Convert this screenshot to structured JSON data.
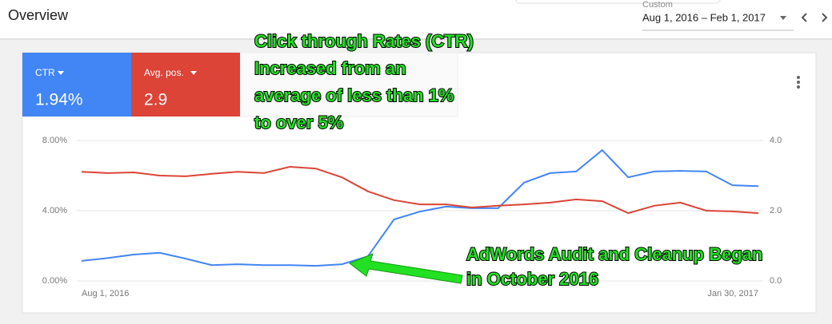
{
  "header": {
    "title": "Overview",
    "range_label": "Custom",
    "date_range": "Aug 1, 2016 – Feb 1, 2017"
  },
  "metrics": [
    {
      "value": "1.94%"
    },
    {
      "value": "2.9"
    }
  ],
  "chart_data": {
    "type": "line",
    "categories": [
      "Aug 1, 2016",
      null,
      null,
      null,
      null,
      null,
      null,
      null,
      null,
      null,
      null,
      null,
      null,
      null,
      null,
      null,
      null,
      null,
      null,
      null,
      null,
      null,
      null,
      null,
      null,
      null,
      "Jan 30, 2017"
    ],
    "series": [
      {
        "name": "CTR",
        "color": "#4285f4",
        "values": [
          1.14,
          1.3,
          1.5,
          1.6,
          1.27,
          0.9,
          0.95,
          0.9,
          0.9,
          0.86,
          0.95,
          1.4,
          3.5,
          3.95,
          4.23,
          4.14,
          4.14,
          5.6,
          6.14,
          6.23,
          7.45,
          5.9,
          6.23,
          6.27,
          6.23,
          5.45,
          5.4
        ]
      },
      {
        "name": "Avg. pos.",
        "color": "#db4437",
        "axis": "y2",
        "values": [
          3.11,
          3.07,
          3.09,
          3.0,
          2.98,
          3.05,
          3.11,
          3.07,
          3.25,
          3.2,
          2.95,
          2.55,
          2.3,
          2.18,
          2.18,
          2.09,
          2.14,
          2.18,
          2.23,
          2.32,
          2.27,
          1.93,
          2.14,
          2.23,
          2.0,
          1.98,
          1.93
        ]
      }
    ],
    "ylim": [
      0,
      8
    ],
    "yticks": [
      {
        "value": 0,
        "label": "0.00%"
      },
      {
        "value": 4,
        "label": "4.00%"
      },
      {
        "value": 8,
        "label": "8.00%"
      }
    ],
    "y2lim": [
      0,
      4
    ],
    "y2ticks": [
      {
        "value": 0,
        "label": "0.0"
      },
      {
        "value": 2,
        "label": "2.0"
      },
      {
        "value": 4,
        "label": "4.0"
      }
    ],
    "grid": true,
    "annotations": [
      {
        "lines": [
          "Click through Rates (CTR)",
          "Increased from an",
          "average of less than 1%",
          "to over 5%"
        ]
      },
      {
        "lines": [
          "AdWords Audit and Cleanup Began",
          "in October 2016"
        ]
      }
    ]
  }
}
